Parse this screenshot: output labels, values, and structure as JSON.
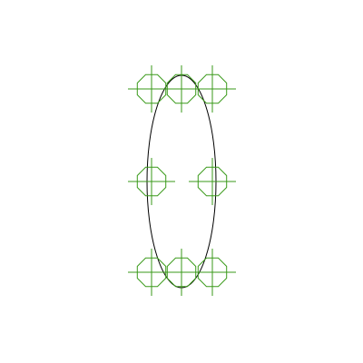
{
  "colors": {
    "background": "#ffffff",
    "ellipse_stroke": "#000000",
    "marker_stroke": "#3a9a1a"
  },
  "marker_shape": "octagon-crosshair",
  "marker_count": 8,
  "marker_grid": {
    "rows": [
      "top",
      "middle",
      "bottom"
    ],
    "columns": [
      "left",
      "center",
      "right"
    ],
    "omitted": [
      "middle-center"
    ]
  }
}
